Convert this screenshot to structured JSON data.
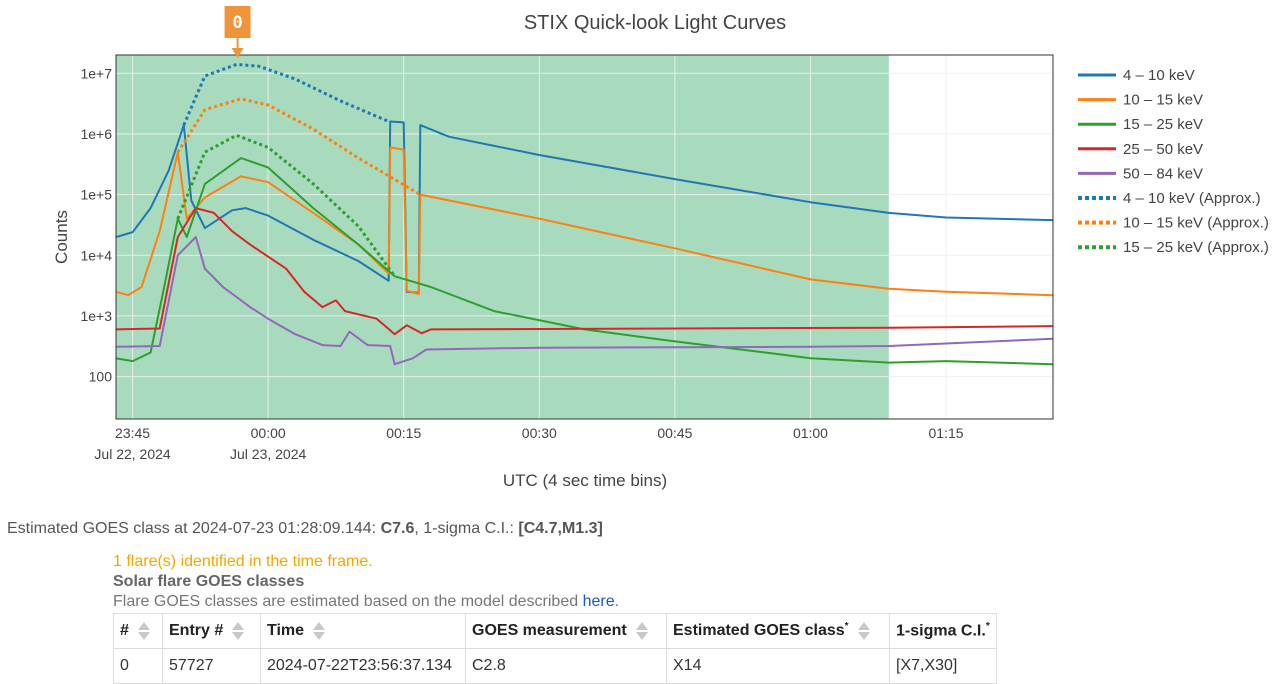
{
  "chart_data": {
    "type": "line",
    "title": "STIX Quick-look Light Curves",
    "xlabel": "UTC (4 sec time bins)",
    "ylabel": "Counts",
    "y_scale": "log",
    "ylim": [
      20,
      20000000
    ],
    "xlim": [
      "2024-07-22T23:43:10",
      "2024-07-23T01:26:50"
    ],
    "x_ticks": [
      {
        "t": "2024-07-22T23:45:00",
        "label": "23:45",
        "date": "Jul 22, 2024"
      },
      {
        "t": "2024-07-23T00:00:00",
        "label": "00:00",
        "date": "Jul 23, 2024"
      },
      {
        "t": "2024-07-23T00:15:00",
        "label": "00:15",
        "date": ""
      },
      {
        "t": "2024-07-23T00:30:00",
        "label": "00:30",
        "date": ""
      },
      {
        "t": "2024-07-23T00:45:00",
        "label": "00:45",
        "date": ""
      },
      {
        "t": "2024-07-23T01:00:00",
        "label": "01:00",
        "date": ""
      },
      {
        "t": "2024-07-23T01:15:00",
        "label": "01:15",
        "date": ""
      }
    ],
    "y_ticks": [
      {
        "v": 100,
        "label": "100"
      },
      {
        "v": 1000,
        "label": "1e+3"
      },
      {
        "v": 10000,
        "label": "1e+4"
      },
      {
        "v": 100000,
        "label": "1e+5"
      },
      {
        "v": 1000000,
        "label": "1e+6"
      },
      {
        "v": 10000000,
        "label": "1e+7"
      }
    ],
    "shaded_region": {
      "from": "2024-07-22T23:43:10",
      "to": "2024-07-23T01:08:40",
      "color": "#a8dbbd"
    },
    "flare_marker": {
      "label": "0",
      "t": "2024-07-22T23:56:37",
      "color": "#f0943c"
    },
    "grid": true,
    "legend_position": "right",
    "series": [
      {
        "name": "4 – 10 keV",
        "color": "#1f77b4",
        "dash": false,
        "points": [
          [
            "2024-07-22T23:43:10",
            20000
          ],
          [
            "2024-07-22T23:45:00",
            24000
          ],
          [
            "2024-07-22T23:47:00",
            60000
          ],
          [
            "2024-07-22T23:49:00",
            250000
          ],
          [
            "2024-07-22T23:50:40",
            1400000
          ],
          [
            "2024-07-22T23:51:30",
            80000
          ],
          [
            "2024-07-22T23:53:00",
            28000
          ],
          [
            "2024-07-22T23:56:00",
            55000
          ],
          [
            "2024-07-22T23:57:30",
            60000
          ],
          [
            "2024-07-23T00:00:00",
            45000
          ],
          [
            "2024-07-23T00:05:00",
            18000
          ],
          [
            "2024-07-23T00:10:00",
            8000
          ],
          [
            "2024-07-23T00:13:20",
            3800
          ],
          [
            "2024-07-23T00:13:30",
            1600000
          ],
          [
            "2024-07-23T00:15:00",
            1550000
          ],
          [
            "2024-07-23T00:15:20",
            2500
          ],
          [
            "2024-07-23T00:16:40",
            2400
          ],
          [
            "2024-07-23T00:16:50",
            1400000
          ],
          [
            "2024-07-23T00:20:00",
            900000
          ],
          [
            "2024-07-23T00:30:00",
            450000
          ],
          [
            "2024-07-23T00:45:00",
            180000
          ],
          [
            "2024-07-23T01:00:00",
            75000
          ],
          [
            "2024-07-23T01:08:40",
            50000
          ],
          [
            "2024-07-23T01:15:00",
            42000
          ],
          [
            "2024-07-23T01:26:50",
            38000
          ]
        ]
      },
      {
        "name": "10 – 15 keV",
        "color": "#ff7f0e",
        "dash": false,
        "points": [
          [
            "2024-07-22T23:43:10",
            2500
          ],
          [
            "2024-07-22T23:44:30",
            2200
          ],
          [
            "2024-07-22T23:46:00",
            3000
          ],
          [
            "2024-07-22T23:48:00",
            25000
          ],
          [
            "2024-07-22T23:50:00",
            500000
          ],
          [
            "2024-07-22T23:51:00",
            40000
          ],
          [
            "2024-07-22T23:53:00",
            90000
          ],
          [
            "2024-07-22T23:57:00",
            200000
          ],
          [
            "2024-07-23T00:00:00",
            160000
          ],
          [
            "2024-07-23T00:05:00",
            50000
          ],
          [
            "2024-07-23T00:10:00",
            15000
          ],
          [
            "2024-07-23T00:13:20",
            5000
          ],
          [
            "2024-07-23T00:13:30",
            600000
          ],
          [
            "2024-07-23T00:15:00",
            550000
          ],
          [
            "2024-07-23T00:15:20",
            2600
          ],
          [
            "2024-07-23T00:16:40",
            2300
          ],
          [
            "2024-07-23T00:16:50",
            100000
          ],
          [
            "2024-07-23T00:30:00",
            40000
          ],
          [
            "2024-07-23T00:45:00",
            13000
          ],
          [
            "2024-07-23T01:00:00",
            4000
          ],
          [
            "2024-07-23T01:08:40",
            2800
          ],
          [
            "2024-07-23T01:15:00",
            2500
          ],
          [
            "2024-07-23T01:26:50",
            2200
          ]
        ]
      },
      {
        "name": "15 – 25 keV",
        "color": "#2ca02c",
        "dash": false,
        "points": [
          [
            "2024-07-22T23:43:10",
            200
          ],
          [
            "2024-07-22T23:45:00",
            180
          ],
          [
            "2024-07-22T23:47:00",
            250
          ],
          [
            "2024-07-22T23:48:30",
            3000
          ],
          [
            "2024-07-22T23:50:00",
            40000
          ],
          [
            "2024-07-22T23:51:00",
            20000
          ],
          [
            "2024-07-22T23:53:00",
            150000
          ],
          [
            "2024-07-22T23:57:00",
            400000
          ],
          [
            "2024-07-23T00:00:00",
            280000
          ],
          [
            "2024-07-23T00:05:00",
            60000
          ],
          [
            "2024-07-23T00:10:00",
            15000
          ],
          [
            "2024-07-23T00:14:00",
            4500
          ],
          [
            "2024-07-23T00:18:00",
            3000
          ],
          [
            "2024-07-23T00:25:00",
            1200
          ],
          [
            "2024-07-23T00:35:00",
            600
          ],
          [
            "2024-07-23T00:45:00",
            380
          ],
          [
            "2024-07-23T00:55:00",
            250
          ],
          [
            "2024-07-23T01:00:00",
            200
          ],
          [
            "2024-07-23T01:08:40",
            170
          ],
          [
            "2024-07-23T01:15:00",
            180
          ],
          [
            "2024-07-23T01:26:50",
            160
          ]
        ]
      },
      {
        "name": "25 – 50 keV",
        "color": "#d62728",
        "dash": false,
        "points": [
          [
            "2024-07-22T23:43:10",
            600
          ],
          [
            "2024-07-22T23:48:00",
            620
          ],
          [
            "2024-07-22T23:50:00",
            20000
          ],
          [
            "2024-07-22T23:52:00",
            60000
          ],
          [
            "2024-07-22T23:54:00",
            50000
          ],
          [
            "2024-07-22T23:56:00",
            25000
          ],
          [
            "2024-07-22T23:58:00",
            15000
          ],
          [
            "2024-07-23T00:02:00",
            6000
          ],
          [
            "2024-07-23T00:04:00",
            2500
          ],
          [
            "2024-07-23T00:06:00",
            1400
          ],
          [
            "2024-07-23T00:07:30",
            1800
          ],
          [
            "2024-07-23T00:08:30",
            1200
          ],
          [
            "2024-07-23T00:12:00",
            900
          ],
          [
            "2024-07-23T00:14:00",
            500
          ],
          [
            "2024-07-23T00:15:20",
            700
          ],
          [
            "2024-07-23T00:17:00",
            520
          ],
          [
            "2024-07-23T00:18:00",
            600
          ],
          [
            "2024-07-23T00:45:00",
            620
          ],
          [
            "2024-07-23T01:08:40",
            640
          ],
          [
            "2024-07-23T01:26:50",
            680
          ]
        ]
      },
      {
        "name": "50 – 84 keV",
        "color": "#9467bd",
        "dash": false,
        "points": [
          [
            "2024-07-22T23:43:10",
            310
          ],
          [
            "2024-07-22T23:48:00",
            320
          ],
          [
            "2024-07-22T23:50:00",
            10000
          ],
          [
            "2024-07-22T23:52:00",
            20000
          ],
          [
            "2024-07-22T23:53:00",
            6000
          ],
          [
            "2024-07-22T23:55:00",
            3000
          ],
          [
            "2024-07-22T23:58:00",
            1400
          ],
          [
            "2024-07-23T00:00:00",
            900
          ],
          [
            "2024-07-23T00:03:00",
            500
          ],
          [
            "2024-07-23T00:06:00",
            330
          ],
          [
            "2024-07-23T00:08:00",
            320
          ],
          [
            "2024-07-23T00:09:00",
            550
          ],
          [
            "2024-07-23T00:11:00",
            330
          ],
          [
            "2024-07-23T00:13:30",
            320
          ],
          [
            "2024-07-23T00:14:00",
            160
          ],
          [
            "2024-07-23T00:16:00",
            200
          ],
          [
            "2024-07-23T00:17:30",
            280
          ],
          [
            "2024-07-23T00:30:00",
            300
          ],
          [
            "2024-07-23T01:00:00",
            310
          ],
          [
            "2024-07-23T01:08:40",
            320
          ],
          [
            "2024-07-23T01:26:50",
            420
          ]
        ]
      },
      {
        "name": "4 – 10 keV (Approx.)",
        "color": "#1f77b4",
        "dash": true,
        "points": [
          [
            "2024-07-22T23:50:40",
            1400000
          ],
          [
            "2024-07-22T23:53:00",
            9000000
          ],
          [
            "2024-07-22T23:56:30",
            14000000
          ],
          [
            "2024-07-22T23:59:00",
            13000000
          ],
          [
            "2024-07-23T00:03:00",
            8000000
          ],
          [
            "2024-07-23T00:08:00",
            3500000
          ],
          [
            "2024-07-23T00:13:20",
            1600000
          ]
        ]
      },
      {
        "name": "10 – 15 keV (Approx.)",
        "color": "#ff7f0e",
        "dash": true,
        "points": [
          [
            "2024-07-22T23:50:00",
            500000
          ],
          [
            "2024-07-22T23:53:00",
            2500000
          ],
          [
            "2024-07-22T23:57:00",
            3800000
          ],
          [
            "2024-07-23T00:00:00",
            3000000
          ],
          [
            "2024-07-23T00:05:00",
            1200000
          ],
          [
            "2024-07-23T00:10:00",
            400000
          ],
          [
            "2024-07-23T00:16:50",
            100000
          ]
        ]
      },
      {
        "name": "15 – 25 keV (Approx.)",
        "color": "#2ca02c",
        "dash": true,
        "points": [
          [
            "2024-07-22T23:50:00",
            40000
          ],
          [
            "2024-07-22T23:53:00",
            500000
          ],
          [
            "2024-07-22T23:56:30",
            950000
          ],
          [
            "2024-07-23T00:00:00",
            600000
          ],
          [
            "2024-07-23T00:05:00",
            150000
          ],
          [
            "2024-07-23T00:10:00",
            30000
          ],
          [
            "2024-07-23T00:14:00",
            4500
          ]
        ]
      }
    ]
  },
  "goes": {
    "prefix": "Estimated GOES class at 2024-07-23 01:28:09.144: ",
    "class": "C7.6",
    "mid": ", 1-sigma C.I.: ",
    "ci": "[C4.7,M1.3]"
  },
  "flares": {
    "message": "1 flare(s) identified in the time frame.",
    "subtitle": "Solar flare GOES classes",
    "desc_prefix": "Flare GOES classes are estimated based on the model described ",
    "desc_link": "here",
    "desc_suffix": ".",
    "columns": [
      "#",
      "Entry #",
      "Time",
      "GOES measurement",
      "Estimated GOES class",
      "1-sigma C.I."
    ],
    "star": "*",
    "rows": [
      [
        "0",
        "57727",
        "2024-07-22T23:56:37.134",
        "C2.8",
        "X14",
        "[X7,X30]"
      ]
    ]
  }
}
